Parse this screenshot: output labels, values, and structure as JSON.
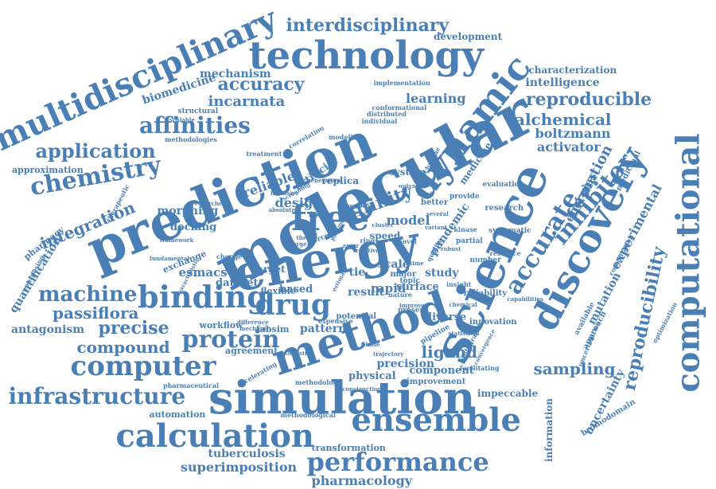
{
  "text_color": "#4a7fb5",
  "words": [
    "molecular",
    "prediction",
    "energy",
    "science",
    "method",
    "simulation",
    "technology",
    "discovery",
    "computational",
    "dynamic",
    "free",
    "multidisciplinary",
    "binding",
    "drug",
    "ensemble",
    "calculation",
    "computer",
    "performance",
    "infrastructure",
    "chemistry",
    "protein",
    "affinities",
    "application",
    "accurate",
    "inhibitor",
    "reproducibility",
    "interdisciplinary",
    "machine",
    "reproducible",
    "accuracy",
    "compound",
    "alchemical",
    "affinity",
    "passiflora",
    "precise",
    "ligand",
    "sampling",
    "boltzmann",
    "activator",
    "experimental",
    "incarnata",
    "learning",
    "integration",
    "superimposition",
    "tuberculosis",
    "pharmacology",
    "formation",
    "energies",
    "mutation",
    "antagonism",
    "biomedicine",
    "mechanism",
    "intelligence",
    "characterization",
    "development",
    "quantification",
    "approximation",
    "uncertainty",
    "bromodomain",
    "information",
    "transformation",
    "reliable",
    "design",
    "model",
    "artificial",
    "morphing",
    "docking",
    "esmacs",
    "exchange",
    "dataset",
    "flexible",
    "based",
    "result",
    "rapid",
    "study",
    "surface",
    "pattern",
    "workflow",
    "fabsim",
    "agreement",
    "precision",
    "component",
    "impeccable",
    "physical",
    "improvement",
    "pharmacy",
    "automation",
    "repurposing",
    "pandemic",
    "medicine",
    "system",
    "research",
    "evaluation",
    "systematic",
    "target",
    "scale",
    "tie",
    "speed",
    "replica",
    "potential",
    "diverse",
    "innovation",
    "reliability",
    "insight",
    "medicinal",
    "uncertainties",
    "approach",
    "available",
    "optimization",
    "computation",
    "structural",
    "methodologies",
    "methodology",
    "methodological",
    "pharmaceutical",
    "accelerating",
    "implementation",
    "conformational",
    "distributed",
    "individual",
    "modeling",
    "treatment",
    "correlation",
    "therapeutic",
    "framework",
    "fundamental",
    "change",
    "characteristic",
    "theory",
    "force",
    "field",
    "charge",
    "novel",
    "kinase",
    "better",
    "provide",
    "technique",
    "several",
    "partial",
    "variant",
    "ring",
    "nature",
    "present",
    "major",
    "topic",
    "number",
    "resource",
    "capabilities",
    "chemical",
    "pipeline",
    "integrated",
    "facilitating",
    "construction",
    "trajectory",
    "phase",
    "expensive",
    "difference",
    "mechanic",
    "researcher",
    "screening",
    "intensive",
    "improve",
    "estimate",
    "absolute",
    "quality",
    "scalable",
    "generation",
    "relative",
    "cluster",
    "parameter",
    "outcome",
    "protocol",
    "robust",
    "small",
    "time",
    "error",
    "convergence",
    "statistical",
    "atomistic"
  ]
}
